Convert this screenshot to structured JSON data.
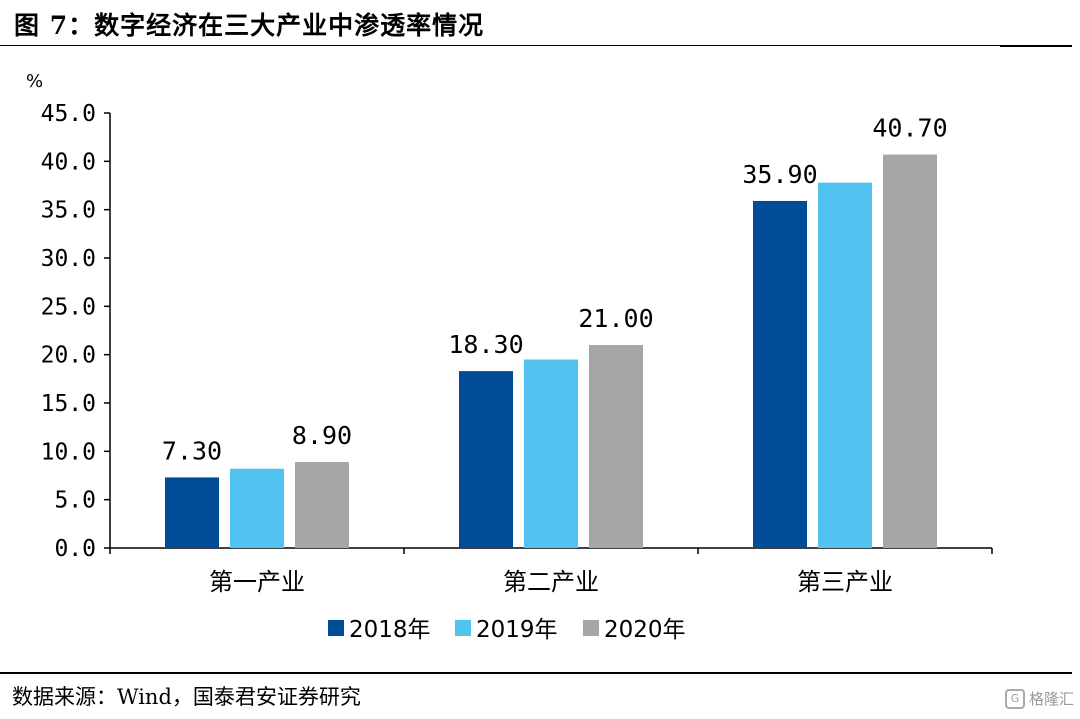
{
  "title": "图 7：数字经济在三大产业中渗透率情况",
  "source": "数据来源：Wind，国泰君安证券研究",
  "watermark": "格隆汇",
  "colors": {
    "s2018": "#004c97",
    "s2019": "#52c3f1",
    "s2020": "#a6a6a6"
  },
  "chart_data": {
    "type": "bar",
    "unit_label": "%",
    "categories": [
      "第一产业",
      "第二产业",
      "第三产业"
    ],
    "series": [
      {
        "name": "2018年",
        "values": [
          7.3,
          18.3,
          35.9
        ],
        "labels": [
          "7.30",
          "18.30",
          "35.90"
        ],
        "color": "#004c97"
      },
      {
        "name": "2019年",
        "values": [
          8.2,
          19.5,
          37.8
        ],
        "labels": [
          null,
          null,
          null
        ],
        "color": "#52c3f1"
      },
      {
        "name": "2020年",
        "values": [
          8.9,
          21.0,
          40.7
        ],
        "labels": [
          "8.90",
          "21.00",
          "40.70"
        ],
        "color": "#a6a6a6"
      }
    ],
    "yticks": [
      "0.0",
      "5.0",
      "10.0",
      "15.0",
      "20.0",
      "25.0",
      "30.0",
      "35.0",
      "40.0",
      "45.0"
    ],
    "ylim": [
      0,
      45
    ],
    "grid": false,
    "legend_position": "bottom"
  }
}
